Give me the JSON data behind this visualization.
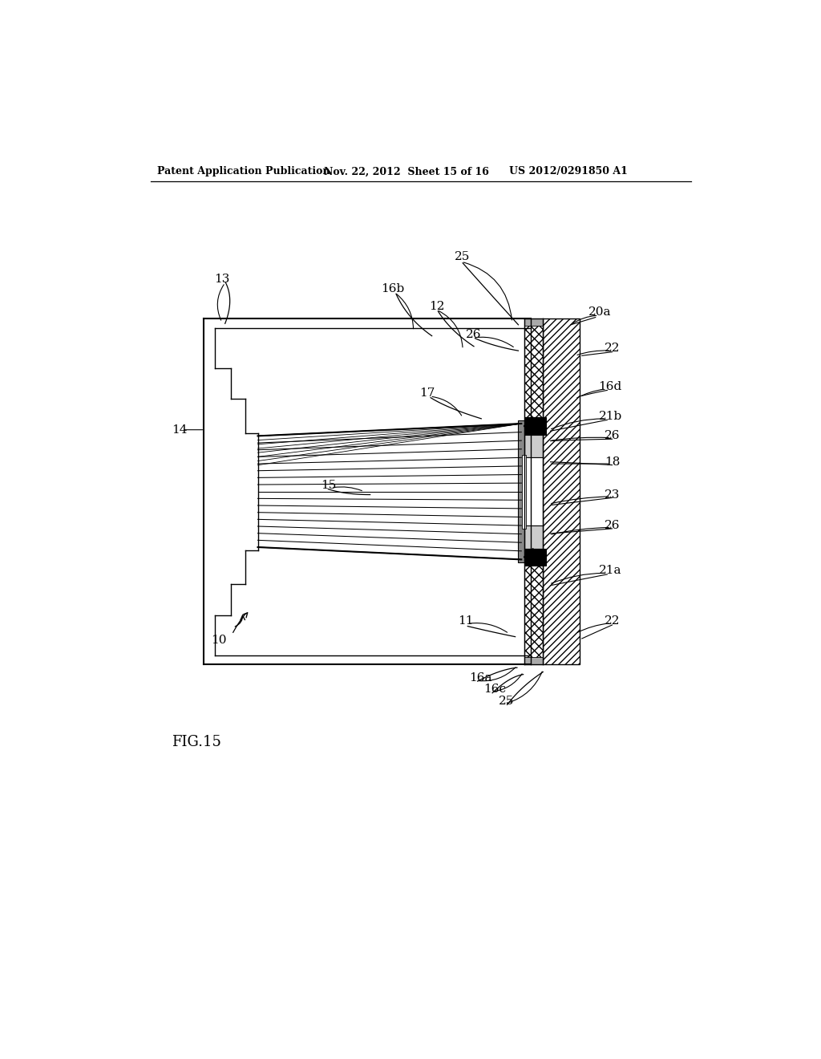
{
  "header_left": "Patent Application Publication",
  "header_mid": "Nov. 22, 2012  Sheet 15 of 16",
  "header_right": "US 2012/0291850 A1",
  "fig_label": "FIG.15",
  "bg_color": "#ffffff",
  "line_color": "#000000"
}
